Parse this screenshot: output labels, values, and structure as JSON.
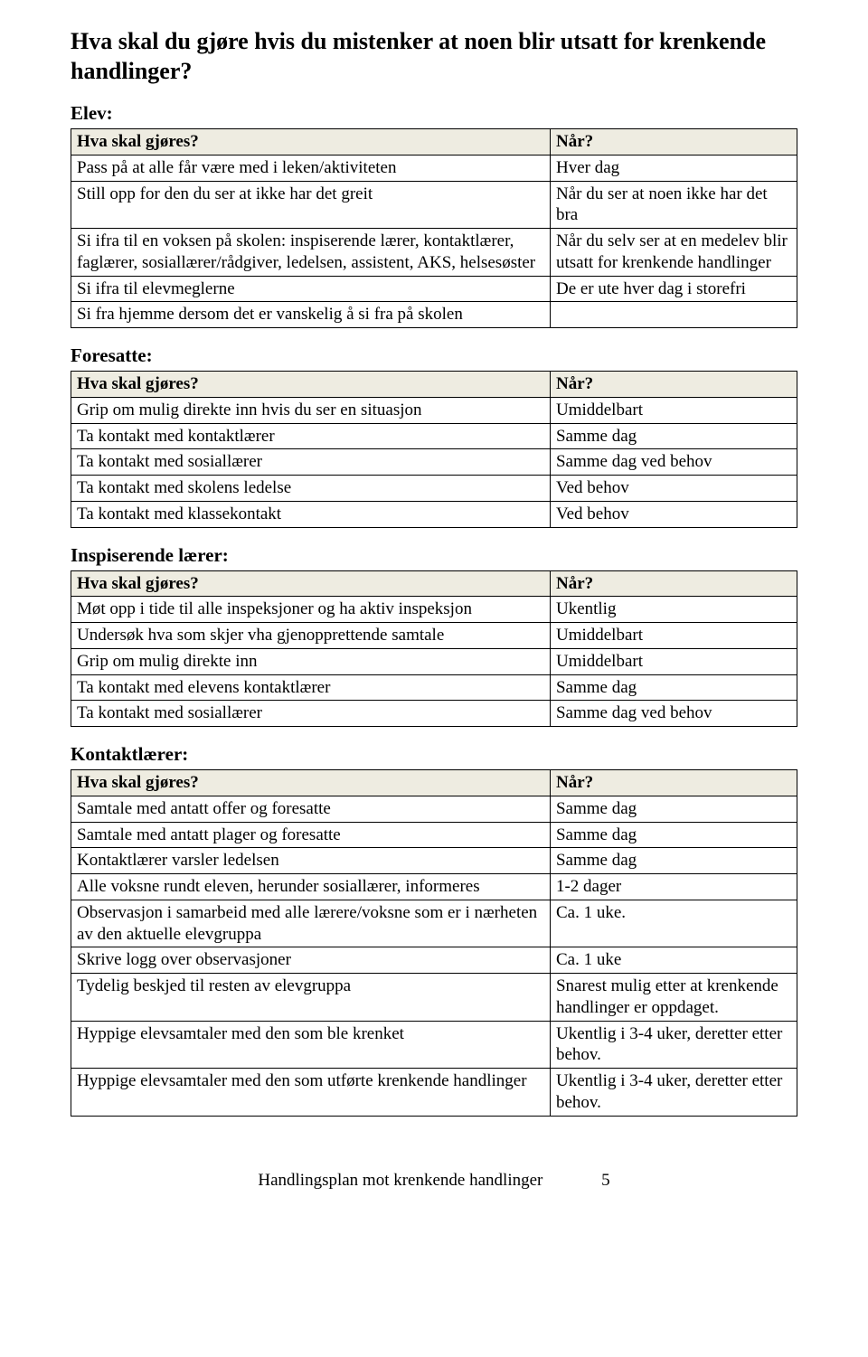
{
  "page": {
    "title": "Hva skal du gjøre hvis du mistenker at noen blir utsatt for krenkende handlinger?",
    "footer_text": "Handlingsplan mot krenkende handlinger",
    "footer_page": "5"
  },
  "header_bg": "#eeece1",
  "border_color": "#000000",
  "sections": [
    {
      "title": "Elev:",
      "col_left": "Hva skal gjøres?",
      "col_right": "Når?",
      "rows": [
        {
          "l": "Pass på at alle får være med i leken/aktiviteten",
          "r": "Hver dag"
        },
        {
          "l": "Still opp for den du ser at ikke har det greit",
          "r": "Når du ser at noen ikke har det bra"
        },
        {
          "l": "Si ifra til en voksen på skolen: inspiserende lærer, kontaktlærer, faglærer, sosiallærer/rådgiver, ledelsen, assistent, AKS, helsesøster",
          "r": "Når du selv ser at en medelev blir utsatt for krenkende handlinger"
        },
        {
          "l": "Si ifra til elevmeglerne",
          "r": "De er ute hver dag i storefri"
        },
        {
          "l": "Si fra hjemme dersom det er vanskelig å si fra på skolen",
          "r": ""
        }
      ]
    },
    {
      "title": "Foresatte:",
      "col_left": "Hva skal gjøres?",
      "col_right": "Når?",
      "rows": [
        {
          "l": "Grip om mulig direkte inn hvis du ser en situasjon",
          "r": "Umiddelbart"
        },
        {
          "l": "Ta kontakt med kontaktlærer",
          "r": "Samme dag"
        },
        {
          "l": "Ta kontakt med sosiallærer",
          "r": "Samme dag ved behov"
        },
        {
          "l": "Ta kontakt med skolens ledelse",
          "r": "Ved behov"
        },
        {
          "l": "Ta kontakt med klassekontakt",
          "r": "Ved behov"
        }
      ]
    },
    {
      "title": "Inspiserende lærer:",
      "col_left": "Hva skal gjøres?",
      "col_right": "Når?",
      "rows": [
        {
          "l": "Møt opp i tide til alle inspeksjoner og ha aktiv inspeksjon",
          "r": "Ukentlig"
        },
        {
          "l": "Undersøk hva som skjer vha gjenopprettende samtale",
          "r": "Umiddelbart"
        },
        {
          "l": "Grip om mulig direkte inn",
          "r": "Umiddelbart"
        },
        {
          "l": "Ta kontakt med elevens kontaktlærer",
          "r": "Samme dag"
        },
        {
          "l": "Ta kontakt med sosiallærer",
          "r": "Samme dag ved behov"
        }
      ]
    },
    {
      "title": "Kontaktlærer:",
      "col_left": "Hva skal gjøres?",
      "col_right": "Når?",
      "rows": [
        {
          "l": "Samtale med antatt offer og foresatte",
          "r": "Samme dag"
        },
        {
          "l": "Samtale med antatt plager og foresatte",
          "r": "Samme dag"
        },
        {
          "l": "Kontaktlærer varsler ledelsen",
          "r": "Samme dag"
        },
        {
          "l": "Alle voksne rundt eleven, herunder sosiallærer, informeres",
          "r": "1-2 dager"
        },
        {
          "l": "Observasjon i samarbeid med alle lærere/voksne som er i nærheten av den aktuelle elevgruppa",
          "r": "Ca. 1 uke."
        },
        {
          "l": "Skrive logg over observasjoner",
          "r": "Ca. 1 uke"
        },
        {
          "l": "Tydelig beskjed til resten av elevgruppa",
          "r": "Snarest mulig etter at krenkende handlinger er oppdaget."
        },
        {
          "l": "Hyppige elevsamtaler med den som ble krenket",
          "r": "Ukentlig i 3-4 uker, deretter etter behov."
        },
        {
          "l": "Hyppige elevsamtaler med den som utførte krenkende handlinger",
          "r": "Ukentlig i 3-4 uker, deretter etter behov."
        }
      ]
    }
  ]
}
